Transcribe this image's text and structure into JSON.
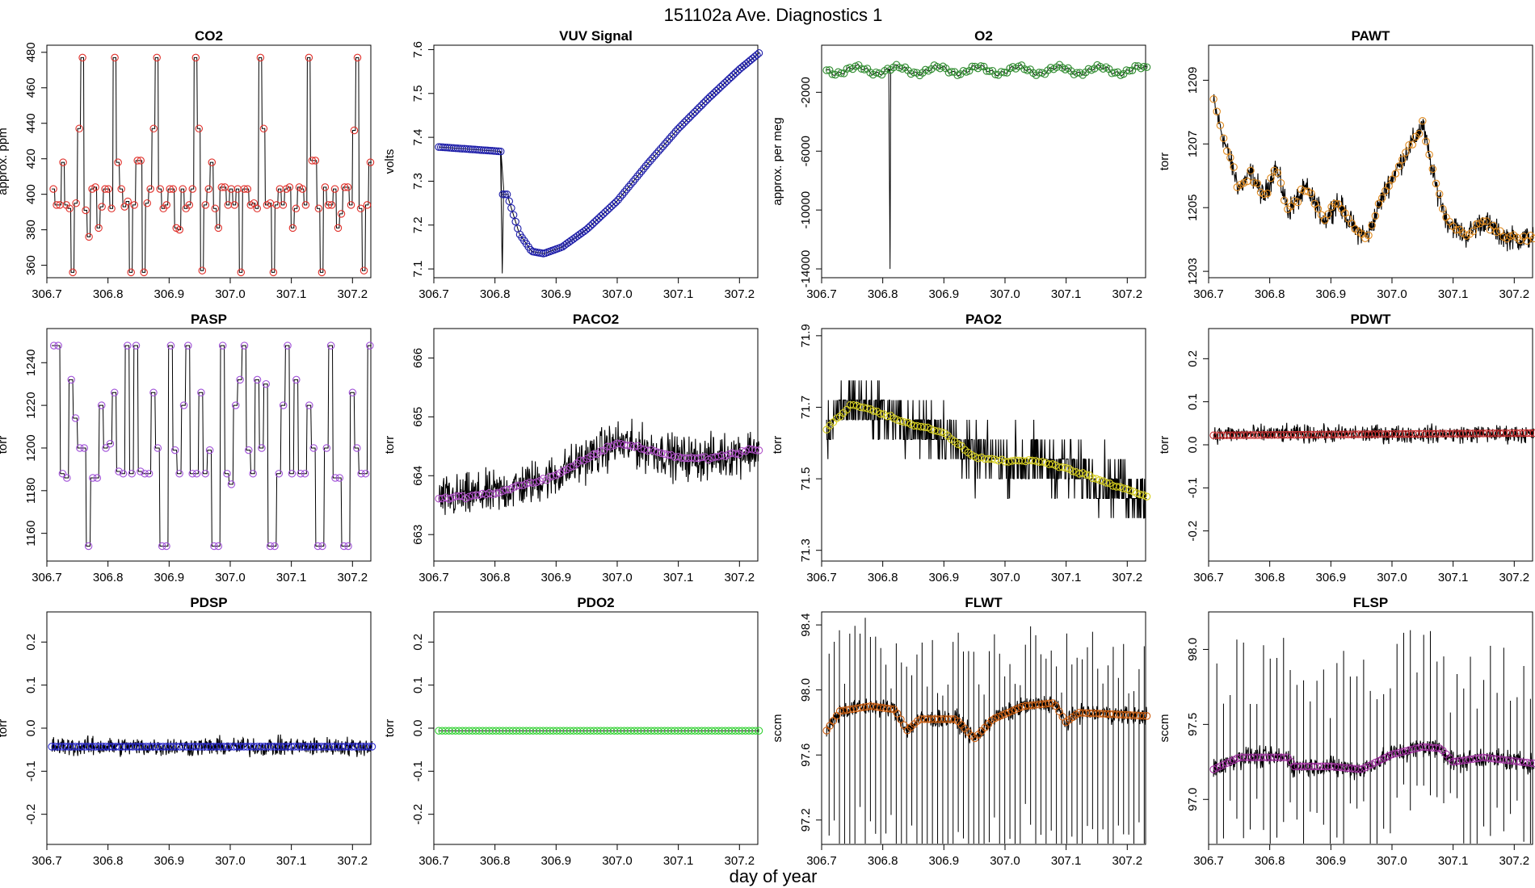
{
  "figure": {
    "suptitle": "151102a   Ave. Diagnostics 1",
    "xlabel": "day of year"
  },
  "chart_data": [
    {
      "type": "line",
      "title": "CO2",
      "ylabel": "approx. ppm",
      "xlim": [
        306.7,
        307.23
      ],
      "ylim": [
        353,
        484
      ],
      "yticks": [
        360,
        380,
        400,
        420,
        440,
        460,
        480
      ],
      "ytick_labels": [
        "360",
        "380",
        "400",
        "420",
        "440",
        "460",
        "480"
      ],
      "xticks": [
        306.7,
        306.8,
        306.9,
        307.0,
        307.1,
        307.2
      ],
      "xtick_labels": [
        "306.7",
        "306.8",
        "306.9",
        "307.0",
        "307.1",
        "307.2"
      ],
      "point_color": "#e0302a",
      "profile": "co2"
    },
    {
      "type": "line",
      "title": "VUV Signal",
      "ylabel": "volts",
      "xlim": [
        306.7,
        307.23
      ],
      "ylim": [
        7.08,
        7.61
      ],
      "yticks": [
        7.1,
        7.2,
        7.3,
        7.4,
        7.5,
        7.6
      ],
      "ytick_labels": [
        "7.1",
        "7.2",
        "7.3",
        "7.4",
        "7.5",
        "7.6"
      ],
      "xticks": [
        306.7,
        306.8,
        306.9,
        307.0,
        307.1,
        307.2
      ],
      "xtick_labels": [
        "306.7",
        "306.8",
        "306.9",
        "307.0",
        "307.1",
        "307.2"
      ],
      "point_color": "#1c1ca8",
      "profile": "vuv"
    },
    {
      "type": "line",
      "title": "O2",
      "ylabel": "approx. per meg",
      "xlim": [
        306.7,
        307.23
      ],
      "ylim": [
        -14600,
        1200
      ],
      "yticks": [
        -14000,
        -10000,
        -6000,
        -2000
      ],
      "ytick_labels": [
        "-14000",
        "-10000",
        "-6000",
        "-2000"
      ],
      "xticks": [
        306.7,
        306.8,
        306.9,
        307.0,
        307.1,
        307.2
      ],
      "xtick_labels": [
        "306.7",
        "306.8",
        "306.9",
        "307.0",
        "307.1",
        "307.2"
      ],
      "point_color": "#2e8b2e",
      "profile": "o2"
    },
    {
      "type": "line",
      "title": "PAWT",
      "ylabel": "torr",
      "xlim": [
        306.7,
        307.23
      ],
      "ylim": [
        1202.8,
        1210.1
      ],
      "yticks": [
        1203,
        1205,
        1207,
        1209
      ],
      "ytick_labels": [
        "1203",
        "1205",
        "1207",
        "1209"
      ],
      "xticks": [
        306.7,
        306.8,
        306.9,
        307.0,
        307.1,
        307.2
      ],
      "xtick_labels": [
        "306.7",
        "306.8",
        "306.9",
        "307.0",
        "307.1",
        "307.2"
      ],
      "point_color": "#e08a1e",
      "profile": "pawt"
    },
    {
      "type": "line",
      "title": "PASP",
      "ylabel": "torr",
      "xlim": [
        306.7,
        307.23
      ],
      "ylim": [
        1147,
        1256
      ],
      "yticks": [
        1160,
        1180,
        1200,
        1220,
        1240
      ],
      "ytick_labels": [
        "1160",
        "1180",
        "1200",
        "1220",
        "1240"
      ],
      "xticks": [
        306.7,
        306.8,
        306.9,
        307.0,
        307.1,
        307.2
      ],
      "xtick_labels": [
        "306.7",
        "306.8",
        "306.9",
        "307.0",
        "307.1",
        "307.2"
      ],
      "point_color": "#a050d8",
      "profile": "pasp"
    },
    {
      "type": "line",
      "title": "PACO2",
      "ylabel": "torr",
      "xlim": [
        306.7,
        307.23
      ],
      "ylim": [
        662.55,
        666.5
      ],
      "yticks": [
        663,
        664,
        665,
        666
      ],
      "ytick_labels": [
        "663",
        "664",
        "665",
        "666"
      ],
      "xticks": [
        306.7,
        306.8,
        306.9,
        307.0,
        307.1,
        307.2
      ],
      "xtick_labels": [
        "306.7",
        "306.8",
        "306.9",
        "307.0",
        "307.1",
        "307.2"
      ],
      "point_color": "#b050c8",
      "profile": "paco2"
    },
    {
      "type": "line",
      "title": "PAO2",
      "ylabel": "torr",
      "xlim": [
        306.7,
        307.23
      ],
      "ylim": [
        71.27,
        71.92
      ],
      "yticks": [
        71.3,
        71.5,
        71.7,
        71.9
      ],
      "ytick_labels": [
        "71.3",
        "71.5",
        "71.7",
        "71.9"
      ],
      "xticks": [
        306.7,
        306.8,
        306.9,
        307.0,
        307.1,
        307.2
      ],
      "xtick_labels": [
        "306.7",
        "306.8",
        "306.9",
        "307.0",
        "307.1",
        "307.2"
      ],
      "point_color": "#d8d020",
      "profile": "pao2"
    },
    {
      "type": "line",
      "title": "PDWT",
      "ylabel": "torr",
      "xlim": [
        306.7,
        307.23
      ],
      "ylim": [
        -0.27,
        0.27
      ],
      "yticks": [
        -0.2,
        -0.1,
        0.0,
        0.1,
        0.2
      ],
      "ytick_labels": [
        "-0.2",
        "-0.1",
        "0.0",
        "0.1",
        "0.2"
      ],
      "xticks": [
        306.7,
        306.8,
        306.9,
        307.0,
        307.1,
        307.2
      ],
      "xtick_labels": [
        "306.7",
        "306.8",
        "306.9",
        "307.0",
        "307.1",
        "307.2"
      ],
      "point_color": "#c83030",
      "profile": "pdwt"
    },
    {
      "type": "line",
      "title": "PDSP",
      "ylabel": "torr",
      "xlim": [
        306.7,
        307.23
      ],
      "ylim": [
        -0.27,
        0.27
      ],
      "yticks": [
        -0.2,
        -0.1,
        0.0,
        0.1,
        0.2
      ],
      "ytick_labels": [
        "-0.2",
        "-0.1",
        "0.0",
        "0.1",
        "0.2"
      ],
      "xticks": [
        306.7,
        306.8,
        306.9,
        307.0,
        307.1,
        307.2
      ],
      "xtick_labels": [
        "306.7",
        "306.8",
        "306.9",
        "307.0",
        "307.1",
        "307.2"
      ],
      "point_color": "#2a2ad0",
      "profile": "pdsp"
    },
    {
      "type": "line",
      "title": "PDO2",
      "ylabel": "torr",
      "xlim": [
        306.7,
        307.23
      ],
      "ylim": [
        -0.27,
        0.27
      ],
      "yticks": [
        -0.2,
        -0.1,
        0.0,
        0.1,
        0.2
      ],
      "ytick_labels": [
        "-0.2",
        "-0.1",
        "0.0",
        "0.1",
        "0.2"
      ],
      "xticks": [
        306.7,
        306.8,
        306.9,
        307.0,
        307.1,
        307.2
      ],
      "xtick_labels": [
        "306.7",
        "306.8",
        "306.9",
        "307.0",
        "307.1",
        "307.2"
      ],
      "point_color": "#30d030",
      "profile": "pdo2"
    },
    {
      "type": "line",
      "title": "FLWT",
      "ylabel": "sccm",
      "xlim": [
        306.7,
        307.23
      ],
      "ylim": [
        97.05,
        98.48
      ],
      "yticks": [
        97.2,
        97.6,
        98.0,
        98.4
      ],
      "ytick_labels": [
        "97.2",
        "97.6",
        "98.0",
        "98.4"
      ],
      "xticks": [
        306.7,
        306.8,
        306.9,
        307.0,
        307.1,
        307.2
      ],
      "xtick_labels": [
        "306.7",
        "306.8",
        "306.9",
        "307.0",
        "307.1",
        "307.2"
      ],
      "point_color": "#d06010",
      "profile": "flwt"
    },
    {
      "type": "line",
      "title": "FLSP",
      "ylabel": "sccm",
      "xlim": [
        306.7,
        307.23
      ],
      "ylim": [
        96.7,
        98.25
      ],
      "yticks": [
        97.0,
        97.5,
        98.0
      ],
      "ytick_labels": [
        "97.0",
        "97.5",
        "98.0"
      ],
      "xticks": [
        306.7,
        306.8,
        306.9,
        307.0,
        307.1,
        307.2
      ],
      "xtick_labels": [
        "306.7",
        "306.8",
        "306.9",
        "307.0",
        "307.1",
        "307.2"
      ],
      "point_color": "#a030a0",
      "profile": "flsp"
    }
  ]
}
